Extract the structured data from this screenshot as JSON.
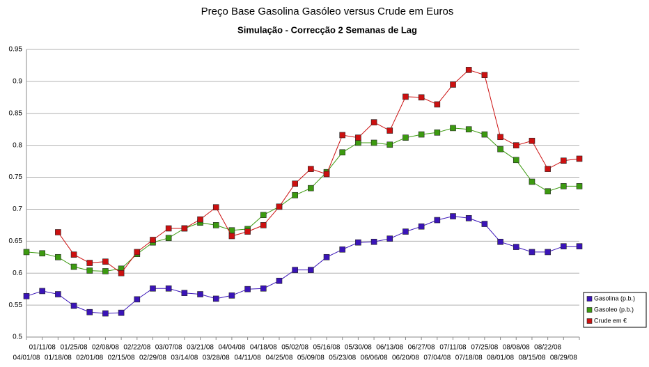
{
  "chart_data": {
    "type": "line",
    "title": "Preço Base Gasolina Gasóleo versus Crude em Euros",
    "subtitle": "Simulação - Correcção 2 Semanas de Lag",
    "categories": [
      "04/01/08",
      "01/11/08",
      "01/18/08",
      "01/25/08",
      "02/01/08",
      "02/08/08",
      "02/15/08",
      "02/22/08",
      "02/29/08",
      "03/07/08",
      "03/14/08",
      "03/21/08",
      "03/28/08",
      "04/04/08",
      "04/11/08",
      "04/18/08",
      "04/25/08",
      "05/02/08",
      "05/09/08",
      "05/16/08",
      "05/23/08",
      "05/30/08",
      "06/06/08",
      "06/13/08",
      "06/20/08",
      "06/27/08",
      "07/04/08",
      "07/11/08",
      "07/18/08",
      "07/25/08",
      "08/01/08",
      "08/08/08",
      "08/15/08",
      "08/22/08",
      "08/29/08",
      null
    ],
    "series": [
      {
        "name": "Gasolina (p.b.)",
        "color": "#3a14b8",
        "values": [
          0.564,
          0.572,
          0.567,
          0.549,
          0.539,
          0.537,
          0.538,
          0.559,
          0.576,
          0.576,
          0.569,
          0.567,
          0.56,
          0.565,
          0.575,
          0.576,
          0.588,
          0.605,
          0.605,
          0.625,
          0.637,
          0.648,
          0.649,
          0.654,
          0.665,
          0.673,
          0.683,
          0.689,
          0.686,
          0.677,
          0.649,
          0.641,
          0.633,
          0.633,
          0.642,
          0.642
        ]
      },
      {
        "name": "Gasoleo (p.b.)",
        "color": "#3c9a10",
        "values": [
          0.633,
          0.631,
          0.625,
          0.61,
          0.604,
          0.603,
          0.607,
          0.63,
          0.648,
          0.655,
          0.67,
          0.679,
          0.675,
          0.667,
          0.669,
          0.691,
          0.704,
          0.722,
          0.733,
          0.758,
          0.789,
          0.804,
          0.804,
          0.801,
          0.812,
          0.817,
          0.82,
          0.827,
          0.825,
          0.817,
          0.794,
          0.777,
          0.743,
          0.728,
          0.736,
          0.736
        ]
      },
      {
        "name": "Crude em €",
        "color": "#cc1010",
        "values": [
          null,
          null,
          0.664,
          0.629,
          0.616,
          0.618,
          0.6,
          0.633,
          0.652,
          0.67,
          0.67,
          0.684,
          0.703,
          0.658,
          0.665,
          0.675,
          0.704,
          0.74,
          0.763,
          0.755,
          0.816,
          0.812,
          0.836,
          0.823,
          0.876,
          0.875,
          0.864,
          0.895,
          0.918,
          0.91,
          0.813,
          0.8,
          0.807,
          0.763,
          0.776,
          0.779
        ]
      }
    ],
    "ylim": [
      0.5,
      0.95
    ],
    "yticks": [
      0.5,
      0.55,
      0.6,
      0.65,
      0.7,
      0.75,
      0.8,
      0.85,
      0.9,
      0.95
    ],
    "grid": true,
    "legend": "right"
  }
}
